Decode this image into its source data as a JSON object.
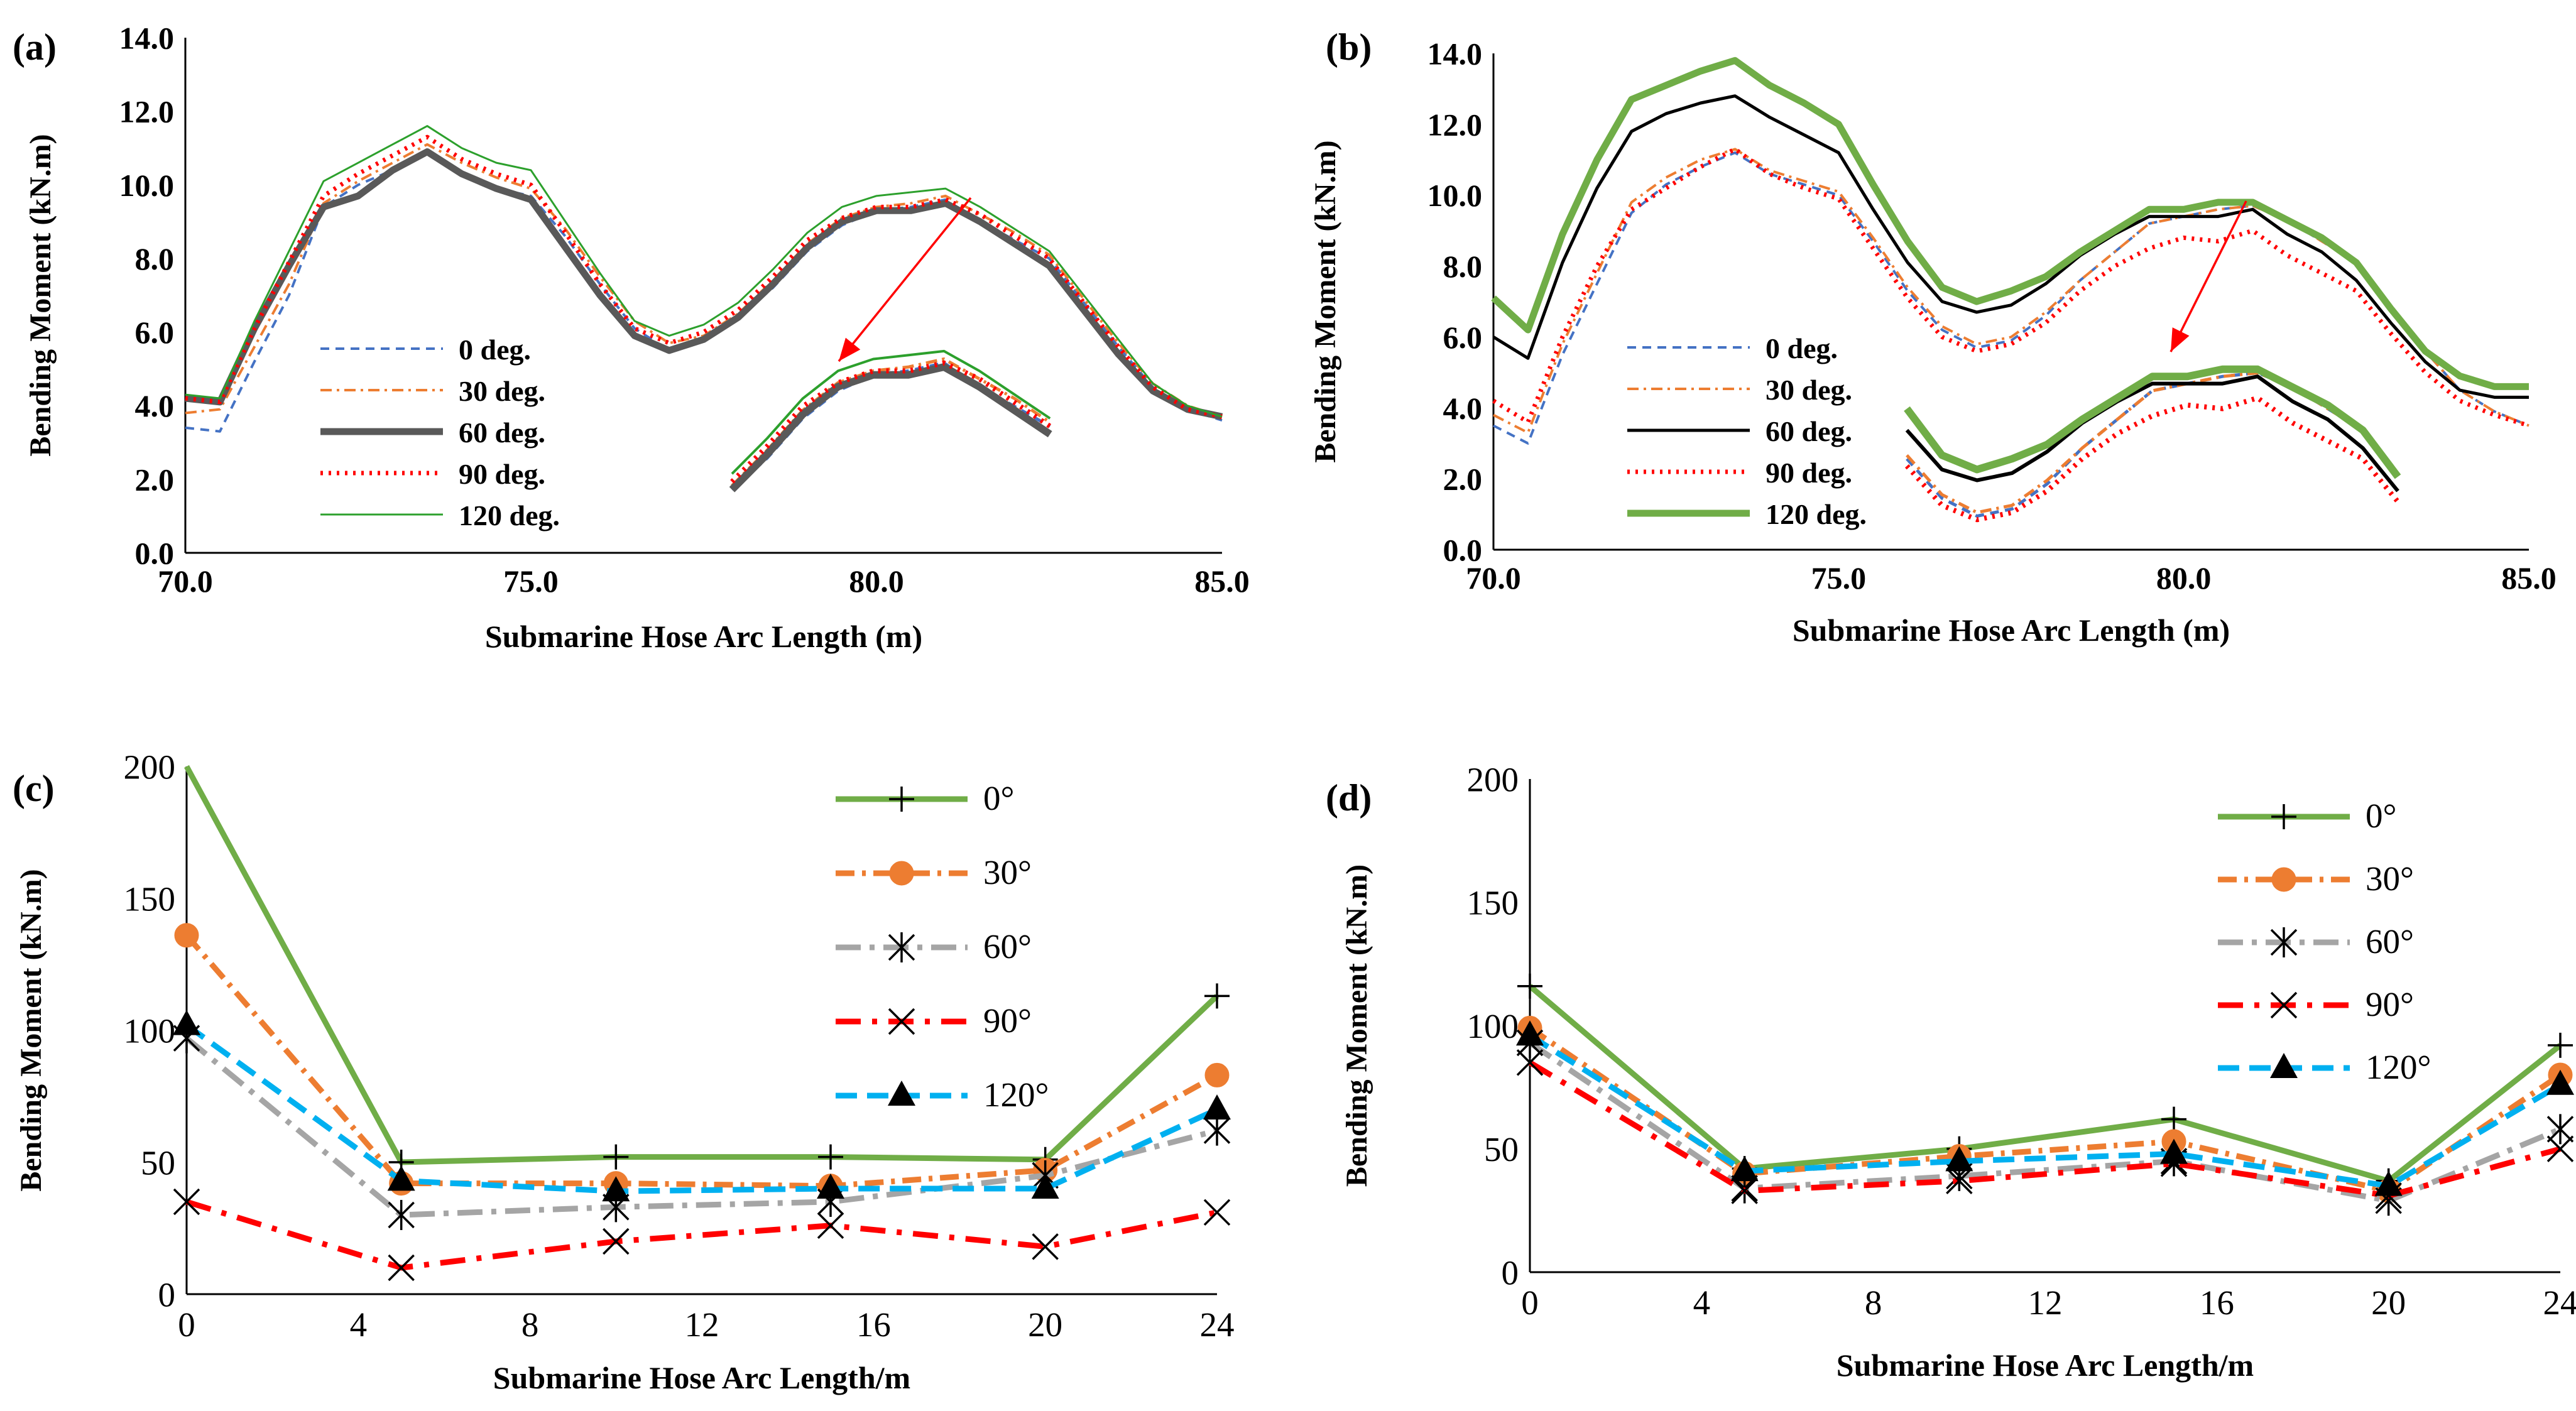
{
  "chart_data": [
    {
      "panel_label": "(a)",
      "type": "line",
      "xlabel": "Submarine Hose Arc Length (m)",
      "ylabel": "Bending Moment  (kN.m)",
      "xlim": [
        70,
        85
      ],
      "ylim": [
        0,
        14
      ],
      "xticks": [
        "70.0",
        "75.0",
        "80.0",
        "85.0"
      ],
      "yticks": [
        "0.0",
        "2.0",
        "4.0",
        "6.0",
        "8.0",
        "10.0",
        "12.0",
        "14.0"
      ],
      "grid": false,
      "legend_position": "bottom-left",
      "annotation": "zoomed inset of peak region around 78-83 m",
      "x": [
        70,
        70.5,
        71,
        71.5,
        72,
        72.5,
        73,
        73.5,
        74,
        74.5,
        75,
        75.5,
        76,
        76.5,
        77,
        77.5,
        78,
        78.5,
        79,
        79.5,
        80,
        80.5,
        81,
        81.5,
        82,
        82.5,
        83,
        83.5,
        84,
        84.5,
        85
      ],
      "series": [
        {
          "name": "0 deg.",
          "color": "#4472C4",
          "style": "dashed",
          "values": [
            3.4,
            3.3,
            5.2,
            7.0,
            9.4,
            10.0,
            10.4,
            10.9,
            10.3,
            9.9,
            9.7,
            8.6,
            7.3,
            6.1,
            5.5,
            5.8,
            6.4,
            7.2,
            8.2,
            8.9,
            9.3,
            9.4,
            9.6,
            9.0,
            8.5,
            8.0,
            6.8,
            5.6,
            4.5,
            3.9,
            3.6
          ]
        },
        {
          "name": "30 deg.",
          "color": "#ED7D31",
          "style": "dashdot",
          "values": [
            3.8,
            3.9,
            5.6,
            7.3,
            9.5,
            10.1,
            10.6,
            11.1,
            10.6,
            10.2,
            9.9,
            8.8,
            7.5,
            6.3,
            5.7,
            5.9,
            6.5,
            7.4,
            8.4,
            9.1,
            9.4,
            9.5,
            9.7,
            9.2,
            8.7,
            8.1,
            6.9,
            5.7,
            4.6,
            4.0,
            3.7
          ]
        },
        {
          "name": "60 deg.",
          "color": "#595959",
          "style": "solid-thick",
          "values": [
            4.2,
            4.1,
            6.1,
            7.8,
            9.4,
            9.7,
            10.4,
            10.9,
            10.3,
            9.9,
            9.6,
            8.3,
            7.0,
            5.9,
            5.5,
            5.8,
            6.4,
            7.3,
            8.3,
            9.0,
            9.3,
            9.3,
            9.5,
            9.0,
            8.4,
            7.8,
            6.6,
            5.4,
            4.4,
            3.9,
            3.7
          ]
        },
        {
          "name": "90 deg.",
          "color": "#FF0000",
          "style": "dotted",
          "values": [
            4.2,
            4.1,
            6.1,
            7.9,
            9.7,
            10.3,
            10.8,
            11.3,
            10.7,
            10.3,
            10.0,
            8.7,
            7.3,
            6.1,
            5.7,
            6.0,
            6.6,
            7.5,
            8.5,
            9.1,
            9.4,
            9.4,
            9.6,
            9.2,
            8.6,
            8.0,
            6.8,
            5.6,
            4.5,
            3.9,
            3.7
          ]
        },
        {
          "name": "120 deg.",
          "color": "#2CA02C",
          "style": "solid-thin",
          "values": [
            4.3,
            4.2,
            6.3,
            8.2,
            10.1,
            10.6,
            11.1,
            11.6,
            11.0,
            10.6,
            10.4,
            9.0,
            7.6,
            6.3,
            5.9,
            6.2,
            6.8,
            7.7,
            8.7,
            9.4,
            9.7,
            9.8,
            9.9,
            9.4,
            8.8,
            8.2,
            7.0,
            5.8,
            4.6,
            4.0,
            3.7
          ]
        }
      ]
    },
    {
      "panel_label": "(b)",
      "type": "line",
      "xlabel": "Submarine Hose Arc Length (m)",
      "ylabel": "Bending Moment  (kN.m)",
      "xlim": [
        70,
        85
      ],
      "ylim": [
        0,
        14
      ],
      "xticks": [
        "70.0",
        "75.0",
        "80.0",
        "85.0"
      ],
      "yticks": [
        "0.0",
        "2.0",
        "4.0",
        "6.0",
        "8.0",
        "10.0",
        "12.0",
        "14.0"
      ],
      "grid": false,
      "legend_position": "bottom-left",
      "annotation": "zoomed inset of peak region around 76-83 m",
      "x": [
        70,
        70.5,
        71,
        71.5,
        72,
        72.5,
        73,
        73.5,
        74,
        74.5,
        75,
        75.5,
        76,
        76.5,
        77,
        77.5,
        78,
        78.5,
        79,
        79.5,
        80,
        80.5,
        81,
        81.5,
        82,
        82.5,
        83,
        83.5,
        84,
        84.5,
        85
      ],
      "series": [
        {
          "name": "0 deg.",
          "color": "#4472C4",
          "style": "dashed",
          "values": [
            3.5,
            3.0,
            5.5,
            7.5,
            9.5,
            10.3,
            10.8,
            11.2,
            10.6,
            10.3,
            10.0,
            8.7,
            7.3,
            6.2,
            5.7,
            5.9,
            6.6,
            7.6,
            8.4,
            9.2,
            9.4,
            9.6,
            9.7,
            9.3,
            8.7,
            8.1,
            6.8,
            5.6,
            4.5,
            3.9,
            3.5
          ]
        },
        {
          "name": "30 deg.",
          "color": "#ED7D31",
          "style": "dashdot",
          "values": [
            3.8,
            3.3,
            5.8,
            7.8,
            9.8,
            10.5,
            11.0,
            11.3,
            10.7,
            10.4,
            10.1,
            8.8,
            7.4,
            6.3,
            5.8,
            6.0,
            6.7,
            7.6,
            8.4,
            9.2,
            9.4,
            9.6,
            9.7,
            9.3,
            8.7,
            8.1,
            6.8,
            5.6,
            4.5,
            3.9,
            3.5
          ]
        },
        {
          "name": "60 deg.",
          "color": "#000000",
          "style": "solid",
          "values": [
            6.0,
            5.4,
            8.1,
            10.2,
            11.8,
            12.3,
            12.6,
            12.8,
            12.2,
            11.7,
            11.2,
            9.6,
            8.1,
            7.0,
            6.7,
            6.9,
            7.5,
            8.3,
            8.9,
            9.4,
            9.4,
            9.4,
            9.6,
            8.9,
            8.4,
            7.6,
            6.4,
            5.3,
            4.5,
            4.3,
            4.3
          ]
        },
        {
          "name": "90 deg.",
          "color": "#FF0000",
          "style": "dotted",
          "values": [
            4.2,
            3.6,
            6.0,
            8.0,
            9.6,
            10.2,
            10.8,
            11.3,
            10.6,
            10.2,
            9.9,
            8.5,
            7.1,
            6.0,
            5.6,
            5.8,
            6.4,
            7.3,
            8.0,
            8.5,
            8.8,
            8.7,
            9.0,
            8.3,
            7.8,
            7.3,
            6.1,
            5.0,
            4.2,
            3.8,
            3.5
          ]
        },
        {
          "name": "120 deg.",
          "color": "#70AD47",
          "style": "solid-thick",
          "values": [
            7.1,
            6.2,
            8.9,
            11.0,
            12.7,
            13.1,
            13.5,
            13.8,
            13.1,
            12.6,
            12.0,
            10.3,
            8.7,
            7.4,
            7.0,
            7.3,
            7.7,
            8.4,
            9.0,
            9.6,
            9.6,
            9.8,
            9.8,
            9.3,
            8.8,
            8.1,
            6.8,
            5.6,
            4.9,
            4.6,
            4.6
          ]
        }
      ]
    },
    {
      "panel_label": "(c)",
      "type": "line",
      "xlabel": "Submarine Hose Arc Length/m",
      "ylabel": "Bending Moment   (kN.m)",
      "xlim": [
        0,
        24
      ],
      "ylim": [
        0,
        200
      ],
      "xticks": [
        "0",
        "4",
        "8",
        "12",
        "16",
        "20",
        "24"
      ],
      "yticks": [
        "0",
        "50",
        "100",
        "150",
        "200"
      ],
      "grid": false,
      "legend_position": "top-right",
      "x": [
        0,
        5,
        10,
        15,
        20,
        24
      ],
      "series": [
        {
          "name": "0°",
          "color": "#70AD47",
          "marker": "plus",
          "values": [
            200,
            50,
            52,
            52,
            51,
            113
          ]
        },
        {
          "name": "30°",
          "color": "#ED7D31",
          "marker": "circle",
          "values": [
            136,
            42,
            42,
            41,
            47,
            83
          ]
        },
        {
          "name": "60°",
          "color": "#A5A5A5",
          "marker": "asterisk",
          "values": [
            97,
            30,
            33,
            35,
            45,
            62
          ]
        },
        {
          "name": "90°",
          "color": "#FF0000",
          "marker": "x",
          "values": [
            35,
            10,
            20,
            26,
            18,
            31
          ]
        },
        {
          "name": "120°",
          "color": "#00B0F0",
          "marker": "triangle",
          "values": [
            102,
            43,
            39,
            40,
            40,
            70
          ]
        }
      ]
    },
    {
      "panel_label": "(d)",
      "type": "line",
      "xlabel": "Submarine Hose Arc Length/m",
      "ylabel": "Bending Moment   (kN.m)",
      "xlim": [
        0,
        24
      ],
      "ylim": [
        0,
        200
      ],
      "xticks": [
        "0",
        "4",
        "8",
        "12",
        "16",
        "20",
        "24"
      ],
      "yticks": [
        "0",
        "50",
        "100",
        "150",
        "200"
      ],
      "grid": false,
      "legend_position": "top-right",
      "x": [
        0,
        5,
        10,
        15,
        20,
        24
      ],
      "series": [
        {
          "name": "0°",
          "color": "#70AD47",
          "marker": "plus",
          "values": [
            116,
            42,
            50,
            62,
            37,
            92
          ]
        },
        {
          "name": "30°",
          "color": "#ED7D31",
          "marker": "circle",
          "values": [
            99,
            40,
            47,
            53,
            33,
            80
          ]
        },
        {
          "name": "60°",
          "color": "#A5A5A5",
          "marker": "asterisk",
          "values": [
            93,
            34,
            39,
            45,
            29,
            58
          ]
        },
        {
          "name": "90°",
          "color": "#FF0000",
          "marker": "x",
          "values": [
            85,
            33,
            37,
            44,
            31,
            50
          ]
        },
        {
          "name": "120°",
          "color": "#00B0F0",
          "marker": "triangle",
          "values": [
            96,
            41,
            45,
            48,
            35,
            76
          ]
        }
      ]
    }
  ]
}
